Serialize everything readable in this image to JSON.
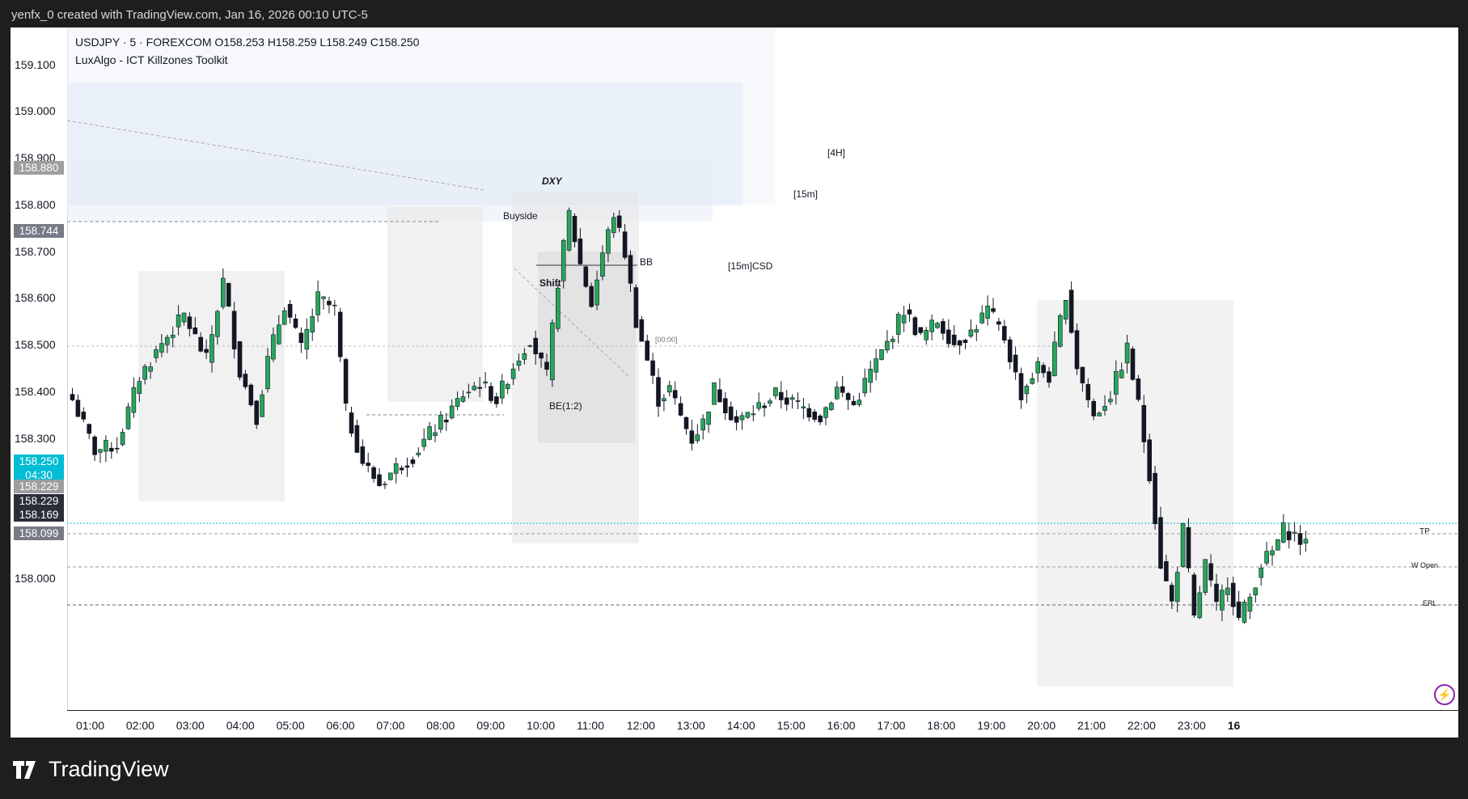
{
  "header": {
    "text": "yenfx_0 created with TradingView.com, Jan 16, 2026 00:10 UTC-5"
  },
  "legend": {
    "line1": "USDJPY · 5 · FOREXCOM  O158.253  H158.259  L158.249  C158.250",
    "line2": "LuxAlgo - ICT Killzones Toolkit"
  },
  "price_axis": {
    "labels": [
      "159.100",
      "159.000",
      "158.900",
      "158.800",
      "158.700",
      "158.600",
      "158.500",
      "158.400",
      "158.300",
      "158.000"
    ],
    "tags": [
      {
        "text": "158.880",
        "color": "#9e9e9e"
      },
      {
        "text": "158.744",
        "color": "#787b86"
      },
      {
        "text": "158.250",
        "sub": "04:30",
        "color": "#00bcd4"
      },
      {
        "text": "158.229",
        "color": "#9e9e9e"
      },
      {
        "text": "158.229",
        "color": "#2a2e39"
      },
      {
        "text": "158.169",
        "color": "#2a2e39"
      },
      {
        "text": "158.099",
        "color": "#787b86"
      }
    ]
  },
  "time_axis": {
    "labels": [
      "01:00",
      "02:00",
      "03:00",
      "04:00",
      "05:00",
      "06:00",
      "07:00",
      "08:00",
      "09:00",
      "10:00",
      "11:00",
      "12:00",
      "13:00",
      "14:00",
      "15:00",
      "16:00",
      "17:00",
      "18:00",
      "19:00",
      "20:00",
      "21:00",
      "22:00",
      "23:00",
      "16"
    ]
  },
  "annotations": {
    "dxy": "DXY",
    "buyside": "Buyside",
    "shift": "Shift",
    "bb": "BB",
    "csd": "[15m]CSD",
    "tf4h": "[4H]",
    "tf15m": "[15m]",
    "be": "BE(1:2)",
    "time0": "[00:00]",
    "tp": "TP",
    "wopen": "W Open",
    "erl": "ERL"
  },
  "brand": {
    "name": "TradingView"
  },
  "colors": {
    "bull": "#26a65b",
    "bear": "#131722",
    "accent": "#00bcd4",
    "zone": "#eef3fa"
  },
  "chart_data": {
    "type": "candlestick",
    "symbol": "USDJPY",
    "interval": "5",
    "ylim": [
      157.96,
      159.17
    ],
    "x_labels": [
      "01:00",
      "02:00",
      "03:00",
      "04:00",
      "05:00",
      "06:00",
      "07:00",
      "08:00",
      "09:00",
      "10:00",
      "11:00",
      "12:00",
      "13:00",
      "14:00",
      "15:00",
      "16:00",
      "17:00",
      "18:00",
      "19:00",
      "20:00",
      "21:00",
      "22:00",
      "23:00",
      "16"
    ],
    "start_time": "00:40",
    "close_path": [
      [
        0,
        158.51
      ],
      [
        4,
        158.42
      ],
      [
        8,
        158.43
      ],
      [
        12,
        158.55
      ],
      [
        16,
        158.61
      ],
      [
        20,
        158.66
      ],
      [
        24,
        158.58
      ],
      [
        27,
        158.72
      ],
      [
        30,
        158.56
      ],
      [
        33,
        158.48
      ],
      [
        35,
        158.58
      ],
      [
        38,
        158.68
      ],
      [
        41,
        158.6
      ],
      [
        44,
        158.69
      ],
      [
        47,
        158.67
      ],
      [
        49,
        158.49
      ],
      [
        52,
        158.4
      ],
      [
        55,
        158.36
      ],
      [
        58,
        158.39
      ],
      [
        61,
        158.41
      ],
      [
        64,
        158.45
      ],
      [
        67,
        158.48
      ],
      [
        70,
        158.52
      ],
      [
        73,
        158.54
      ],
      [
        76,
        158.51
      ],
      [
        79,
        158.57
      ],
      [
        82,
        158.62
      ],
      [
        85,
        158.55
      ],
      [
        87,
        158.72
      ],
      [
        89,
        158.84
      ],
      [
        91,
        158.75
      ],
      [
        93,
        158.68
      ],
      [
        95,
        158.77
      ],
      [
        97,
        158.84
      ],
      [
        99,
        158.77
      ],
      [
        101,
        158.65
      ],
      [
        103,
        158.58
      ],
      [
        105,
        158.51
      ],
      [
        107,
        158.53
      ],
      [
        109,
        158.48
      ],
      [
        111,
        158.44
      ],
      [
        113,
        158.47
      ],
      [
        115,
        158.53
      ],
      [
        119,
        158.47
      ],
      [
        122,
        158.49
      ],
      [
        126,
        158.52
      ],
      [
        130,
        158.5
      ],
      [
        134,
        158.48
      ],
      [
        137,
        158.53
      ],
      [
        140,
        158.5
      ],
      [
        143,
        158.56
      ],
      [
        146,
        158.61
      ],
      [
        149,
        158.67
      ],
      [
        152,
        158.62
      ],
      [
        155,
        158.65
      ],
      [
        158,
        158.61
      ],
      [
        161,
        158.63
      ],
      [
        164,
        158.67
      ],
      [
        167,
        158.62
      ],
      [
        170,
        158.52
      ],
      [
        173,
        158.57
      ],
      [
        175,
        158.55
      ],
      [
        178,
        158.7
      ],
      [
        180,
        158.57
      ],
      [
        183,
        158.48
      ],
      [
        186,
        158.52
      ],
      [
        189,
        158.6
      ],
      [
        191,
        158.5
      ],
      [
        193,
        158.38
      ],
      [
        195,
        158.22
      ],
      [
        197,
        158.15
      ],
      [
        199,
        158.28
      ],
      [
        201,
        158.12
      ],
      [
        203,
        158.22
      ],
      [
        205,
        158.14
      ],
      [
        207,
        158.19
      ],
      [
        209,
        158.12
      ],
      [
        211,
        158.16
      ],
      [
        213,
        158.22
      ],
      [
        215,
        158.24
      ],
      [
        217,
        158.28
      ],
      [
        219,
        158.27
      ],
      [
        221,
        158.25
      ]
    ]
  }
}
